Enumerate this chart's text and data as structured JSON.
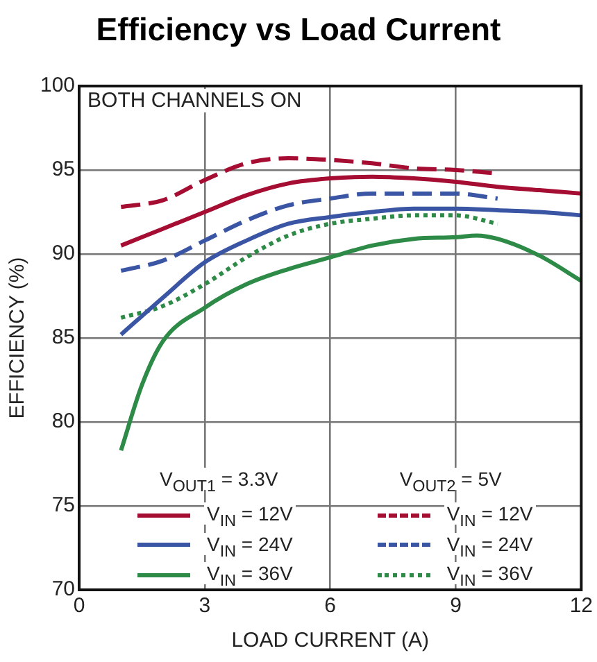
{
  "chart_data": {
    "type": "line",
    "title": "Efficiency vs Load Current",
    "xlabel": "LOAD CURRENT (A)",
    "ylabel": "EFFICIENCY (%)",
    "x": [
      1,
      2,
      3,
      4,
      5,
      6,
      7,
      8,
      9,
      10,
      11,
      12
    ],
    "series": [
      {
        "name": "V$_{IN}$ = 12V",
        "color": "#a50e32",
        "line_style": "solid",
        "values": [
          90.5,
          91.5,
          92.5,
          93.5,
          94.2,
          94.5,
          94.6,
          94.5,
          94.3,
          94.0,
          93.8,
          93.6
        ]
      },
      {
        "name": "V$_{IN}$ = 24V",
        "color": "#3a55a4",
        "line_style": "solid",
        "values": [
          85.2,
          87.4,
          89.5,
          90.8,
          91.8,
          92.2,
          92.5,
          92.7,
          92.7,
          92.6,
          92.5,
          92.3
        ]
      },
      {
        "name": "V$_{IN}$ = 36V",
        "color": "#2e8b47",
        "line_style": "solid",
        "x": [
          1,
          1.5,
          2,
          3,
          4,
          5,
          6,
          7,
          8,
          9,
          9.5,
          10,
          11,
          12
        ],
        "values": [
          78.3,
          82.2,
          84.8,
          86.8,
          88.2,
          89.1,
          89.8,
          90.5,
          90.9,
          91.0,
          91.1,
          90.9,
          89.9,
          88.4
        ]
      },
      {
        "name": "V$_{IN}$ = 12V",
        "color": "#a50e32",
        "line_style": "dashed",
        "values": [
          92.8,
          93.2,
          94.4,
          95.4,
          95.7,
          95.6,
          95.4,
          95.1,
          95.0,
          94.8,
          null,
          null
        ]
      },
      {
        "name": "V$_{IN}$ = 24V",
        "color": "#3a55a4",
        "line_style": "dashed",
        "values": [
          89.0,
          89.6,
          90.8,
          92.0,
          92.9,
          93.3,
          93.6,
          93.6,
          93.6,
          93.3,
          null,
          null
        ]
      },
      {
        "name": "V$_{IN}$ = 36V",
        "color": "#2e8b47",
        "line_style": "dotted",
        "values": [
          86.2,
          86.9,
          88.2,
          89.8,
          91.1,
          91.8,
          92.1,
          92.3,
          92.3,
          91.8,
          null,
          null
        ]
      }
    ],
    "xlim": [
      0,
      12
    ],
    "xticks": [
      0,
      3,
      6,
      9,
      12
    ],
    "ylim": [
      70,
      100
    ],
    "yticks": [
      70,
      75,
      80,
      85,
      90,
      95,
      100
    ],
    "grid": true,
    "legend": "bottom",
    "marker": "none",
    "annotations": [
      "BOTH CHANNELS ON",
      "V$_{OUT1}$ = 3.3V",
      "V$_{OUT2}$ = 5V"
    ]
  }
}
